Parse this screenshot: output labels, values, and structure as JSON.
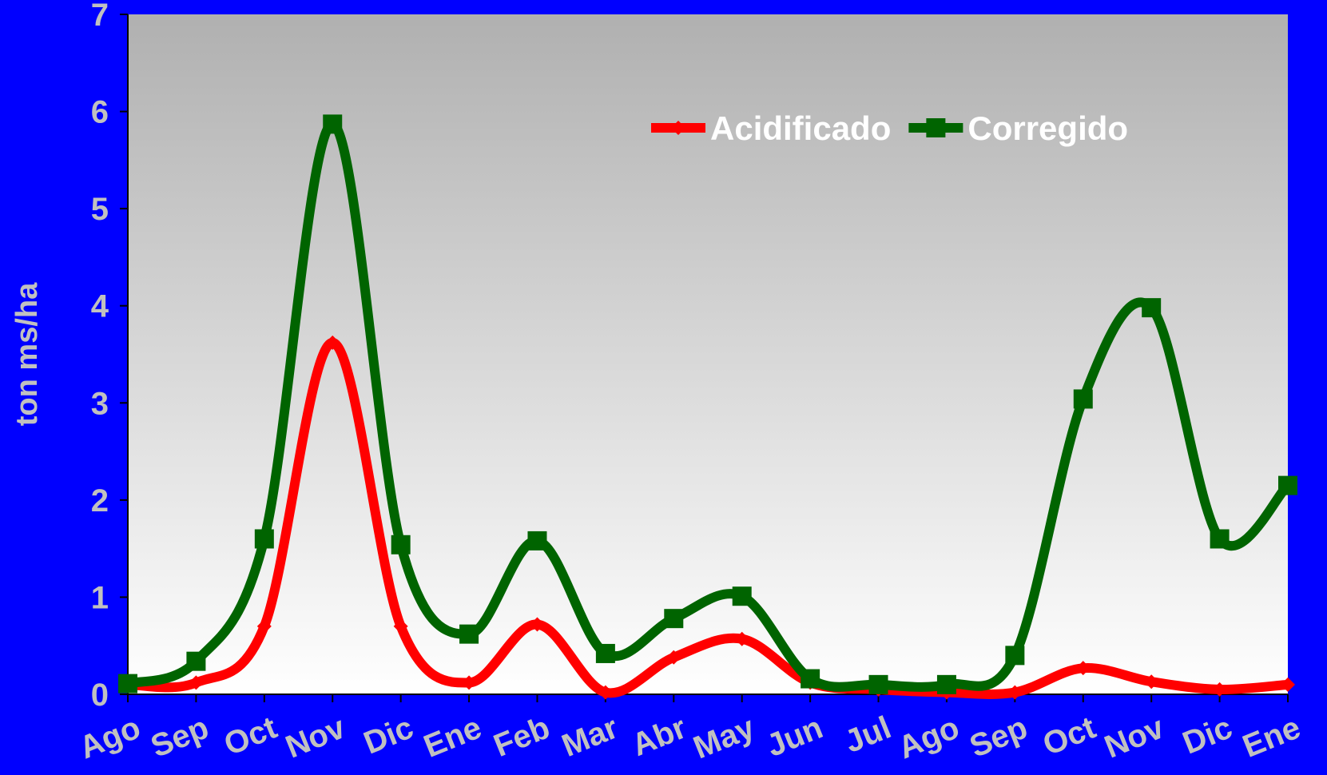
{
  "chart_data": {
    "type": "line",
    "title": "",
    "xlabel": "",
    "ylabel": "ton ms/ha",
    "ylim": [
      0,
      7
    ],
    "yticks": [
      "0",
      "1",
      "2",
      "3",
      "4",
      "5",
      "6",
      "7"
    ],
    "categories": [
      "Ago",
      "Sep",
      "Oct",
      "Nov",
      "Dic",
      "Ene",
      "Feb",
      "Mar",
      "Abr",
      "May",
      "Jun",
      "Jul",
      "Ago",
      "Sep",
      "Oct",
      "Nov",
      "Dic",
      "Ene"
    ],
    "series": [
      {
        "name": "Acidificado",
        "color": "#ff0000",
        "marker": "diamond",
        "values": [
          0.1,
          0.12,
          0.7,
          3.62,
          0.7,
          0.12,
          0.72,
          0.02,
          0.38,
          0.57,
          0.12,
          0.05,
          0.02,
          0.02,
          0.27,
          0.13,
          0.05,
          0.1
        ]
      },
      {
        "name": "Corregido",
        "color": "#006400",
        "marker": "square",
        "values": [
          0.11,
          0.34,
          1.6,
          5.87,
          1.54,
          0.62,
          1.58,
          0.42,
          0.78,
          1.01,
          0.16,
          0.1,
          0.1,
          0.4,
          3.04,
          3.98,
          1.6,
          2.15
        ]
      }
    ],
    "grid": false,
    "legend_position": "top-right",
    "colors": {
      "background": "#0000ff",
      "plot_top": "#b0b0b0",
      "plot_bottom": "#ffffff",
      "axis_text": "#c0c0c0",
      "legend_text": "#ffffff"
    }
  }
}
